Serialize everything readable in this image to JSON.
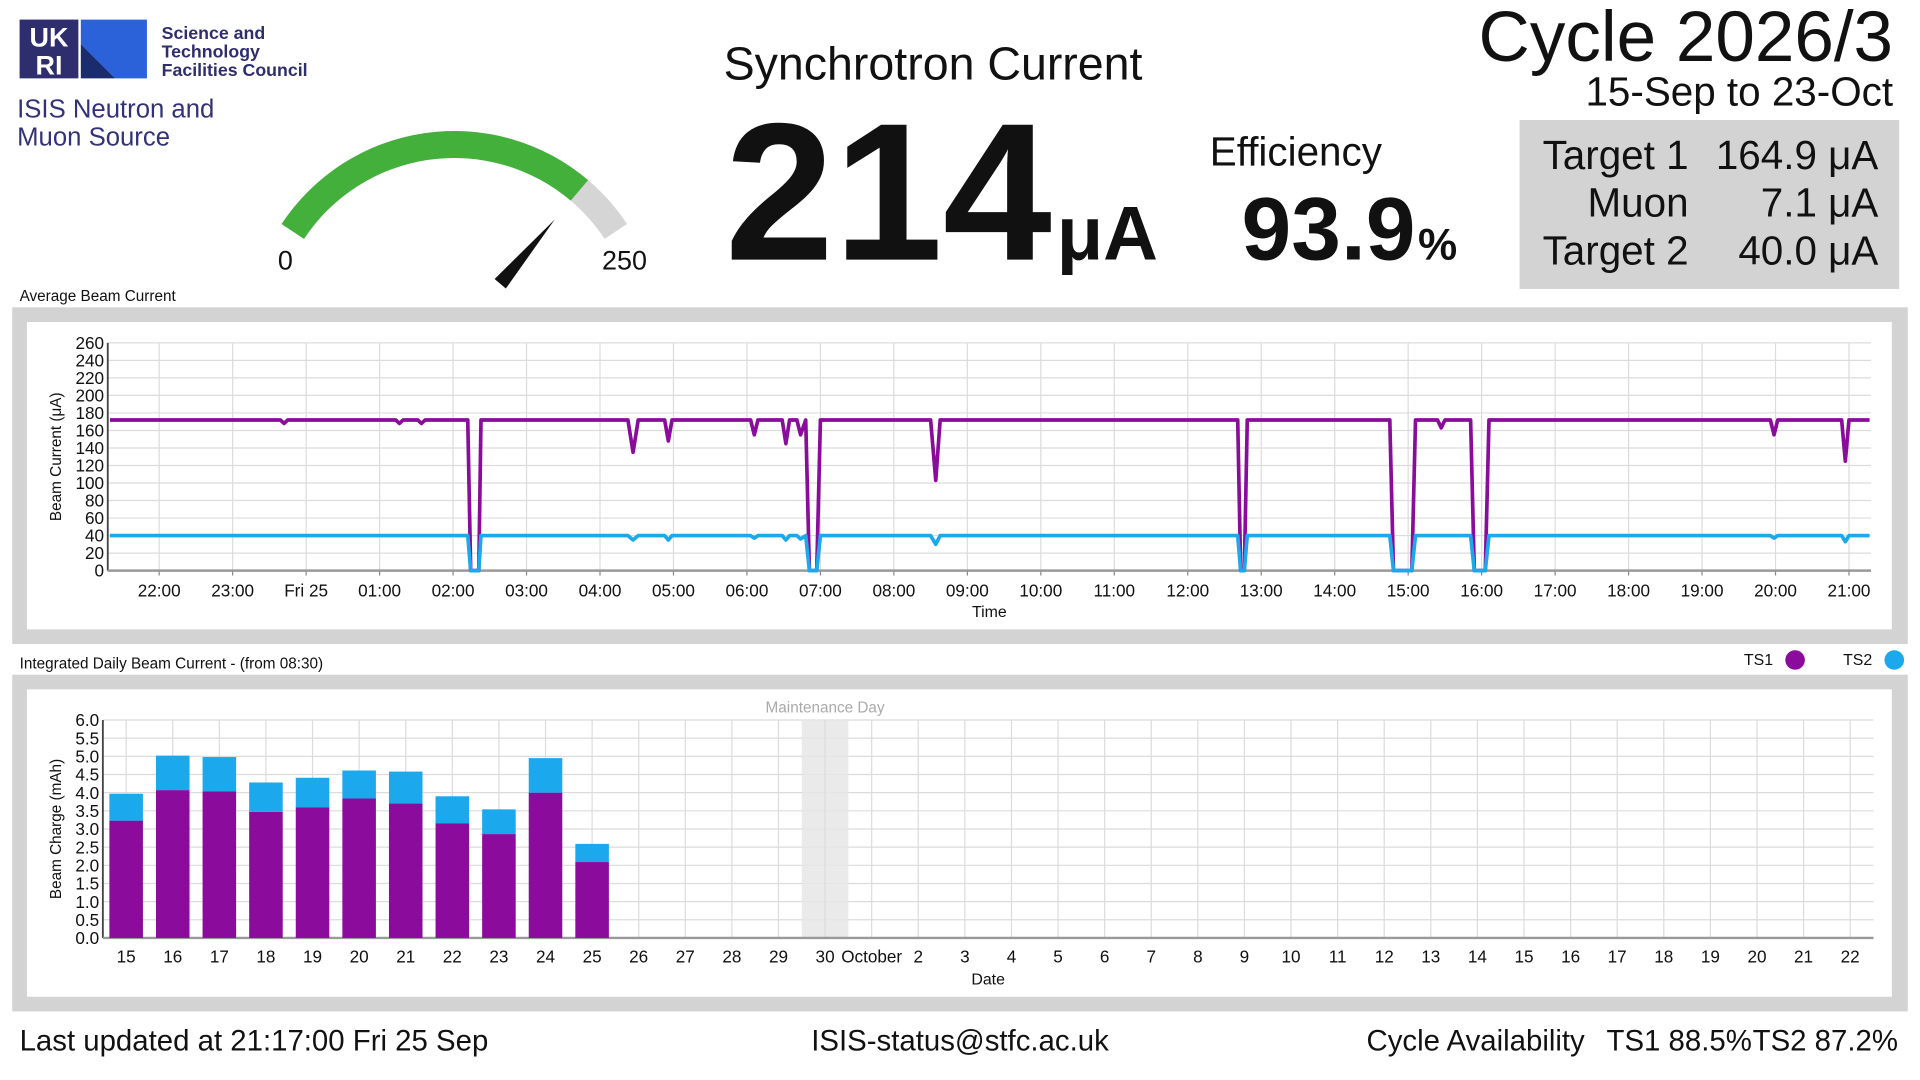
{
  "header": {
    "logo": [
      "UK",
      "RI"
    ],
    "council": [
      "Science and",
      "Technology",
      "Facilities Council"
    ],
    "site": [
      "ISIS Neutron and",
      "Muon Source"
    ]
  },
  "gauge": {
    "min": 0,
    "max": 250
  },
  "current": {
    "title": "Synchrotron Current",
    "value": 214,
    "unit": "μA"
  },
  "efficiency": {
    "label": "Efficiency",
    "value": 93.9,
    "unit": "%"
  },
  "cycle": {
    "title": "Cycle 2026/3",
    "dates": "15-Sep to 23-Oct"
  },
  "targets": {
    "rows": [
      [
        "Target 1",
        "164.9 μA"
      ],
      [
        "Muon",
        "7.1 μA"
      ],
      [
        "Target 2",
        "40.0 μA"
      ]
    ]
  },
  "footer": {
    "updated": "Last updated at 21:17:00 Fri 25 Sep",
    "email": "ISIS-status@stfc.ac.uk",
    "availability": [
      "Cycle Availability",
      "TS1 88.5%",
      "TS2 87.2%"
    ]
  },
  "chart_data": [
    {
      "type": "line",
      "title": "Average Beam Current",
      "xlabel": "Time",
      "ylabel": "Beam Current (μA)",
      "x": [
        21.33,
        23.65,
        23.7,
        23.75,
        25.22,
        25.27,
        25.32,
        25.52,
        25.57,
        25.62,
        26.2,
        26.24,
        26.3,
        26.35,
        26.38,
        28.38,
        28.45,
        28.52,
        28.88,
        28.93,
        28.98,
        30.05,
        30.1,
        30.15,
        30.48,
        30.53,
        30.58,
        30.68,
        30.73,
        30.8,
        30.85,
        30.9,
        30.95,
        31.0,
        32.5,
        32.57,
        32.63,
        36.68,
        36.72,
        36.77,
        36.81,
        38.75,
        38.8,
        39.05,
        39.1,
        39.4,
        39.45,
        39.5,
        39.85,
        39.9,
        40.05,
        40.1,
        43.93,
        43.98,
        44.03,
        44.9,
        44.95,
        45.0,
        45.28
      ],
      "series": [
        {
          "name": "TS1",
          "color": "#8b0b9c",
          "values": [
            172,
            172,
            168,
            172,
            172,
            168,
            172,
            172,
            168,
            172,
            172,
            0,
            0,
            0,
            172,
            172,
            135,
            172,
            172,
            148,
            172,
            172,
            155,
            172,
            172,
            145,
            172,
            172,
            155,
            172,
            0,
            0,
            0,
            172,
            172,
            103,
            172,
            172,
            0,
            0,
            172,
            172,
            0,
            0,
            172,
            172,
            163,
            172,
            172,
            0,
            0,
            172,
            172,
            155,
            172,
            172,
            125,
            172,
            172
          ]
        },
        {
          "name": "TS2",
          "color": "#1ba8ec",
          "values": [
            40,
            40,
            40,
            40,
            40,
            40,
            40,
            40,
            40,
            40,
            40,
            0,
            0,
            0,
            40,
            40,
            35,
            40,
            40,
            35,
            40,
            40,
            37,
            40,
            40,
            35,
            40,
            40,
            36,
            40,
            0,
            0,
            0,
            40,
            40,
            30,
            40,
            40,
            0,
            0,
            40,
            40,
            0,
            0,
            40,
            40,
            40,
            40,
            40,
            0,
            0,
            40,
            40,
            37,
            40,
            40,
            33,
            40,
            40
          ]
        }
      ],
      "xlim": [
        21.3,
        45.3
      ],
      "xticks": [
        {
          "value": 22,
          "label": "22:00"
        },
        {
          "value": 23,
          "label": "23:00"
        },
        {
          "value": 24,
          "label": "Fri 25"
        },
        {
          "value": 25,
          "label": "01:00"
        },
        {
          "value": 26,
          "label": "02:00"
        },
        {
          "value": 27,
          "label": "03:00"
        },
        {
          "value": 28,
          "label": "04:00"
        },
        {
          "value": 29,
          "label": "05:00"
        },
        {
          "value": 30,
          "label": "06:00"
        },
        {
          "value": 31,
          "label": "07:00"
        },
        {
          "value": 32,
          "label": "08:00"
        },
        {
          "value": 33,
          "label": "09:00"
        },
        {
          "value": 34,
          "label": "10:00"
        },
        {
          "value": 35,
          "label": "11:00"
        },
        {
          "value": 36,
          "label": "12:00"
        },
        {
          "value": 37,
          "label": "13:00"
        },
        {
          "value": 38,
          "label": "14:00"
        },
        {
          "value": 39,
          "label": "15:00"
        },
        {
          "value": 40,
          "label": "16:00"
        },
        {
          "value": 41,
          "label": "17:00"
        },
        {
          "value": 42,
          "label": "18:00"
        },
        {
          "value": 43,
          "label": "19:00"
        },
        {
          "value": 44,
          "label": "20:00"
        },
        {
          "value": 45,
          "label": "21:00"
        }
      ],
      "ylim": [
        0,
        260
      ],
      "yticks": [
        0,
        20,
        40,
        60,
        80,
        100,
        120,
        140,
        160,
        180,
        200,
        220,
        240,
        260
      ],
      "grid": true,
      "legend": "top-right"
    },
    {
      "type": "bar",
      "stacked": true,
      "title": "Integrated Daily Beam Current - (from 08:30)",
      "xlabel": "Date",
      "ylabel": "Beam Charge (mAh)",
      "categories": [
        "15",
        "16",
        "17",
        "18",
        "19",
        "20",
        "21",
        "22",
        "23",
        "24",
        "25",
        "26",
        "27",
        "28",
        "29",
        "30",
        "October",
        "2",
        "3",
        "4",
        "5",
        "6",
        "7",
        "8",
        "9",
        "10",
        "11",
        "12",
        "13",
        "14",
        "15",
        "16",
        "17",
        "18",
        "19",
        "20",
        "21",
        "22"
      ],
      "series": [
        {
          "color": "#8b0b9c",
          "values": [
            3.23,
            4.07,
            4.04,
            3.47,
            3.6,
            3.84,
            3.7,
            3.16,
            2.86,
            4.0,
            2.09,
            null,
            null,
            null,
            null,
            null,
            null,
            null,
            null,
            null,
            null,
            null,
            null,
            null,
            null,
            null,
            null,
            null,
            null,
            null,
            null,
            null,
            null,
            null,
            null,
            null,
            null,
            null
          ]
        },
        {
          "color": "#1ba8ec",
          "values": [
            0.74,
            0.95,
            0.94,
            0.81,
            0.81,
            0.77,
            0.88,
            0.74,
            0.68,
            0.95,
            0.5,
            null,
            null,
            null,
            null,
            null,
            null,
            null,
            null,
            null,
            null,
            null,
            null,
            null,
            null,
            null,
            null,
            null,
            null,
            null,
            null,
            null,
            null,
            null,
            null,
            null,
            null,
            null
          ]
        }
      ],
      "ylim": [
        0,
        6
      ],
      "yticks": [
        {
          "value": 0,
          "label": "0.0"
        },
        0.5,
        {
          "value": 1,
          "label": "1.0"
        },
        1.5,
        {
          "value": 2,
          "label": "2.0"
        },
        2.5,
        {
          "value": 3,
          "label": "3.0"
        },
        3.5,
        {
          "value": 4,
          "label": "4.0"
        },
        4.5,
        {
          "value": 5,
          "label": "5.0"
        },
        5.5,
        {
          "value": 6,
          "label": "6.0"
        }
      ],
      "grid": true,
      "annotations": [
        {
          "text": "Maintenance Day",
          "category": "30"
        }
      ]
    }
  ]
}
